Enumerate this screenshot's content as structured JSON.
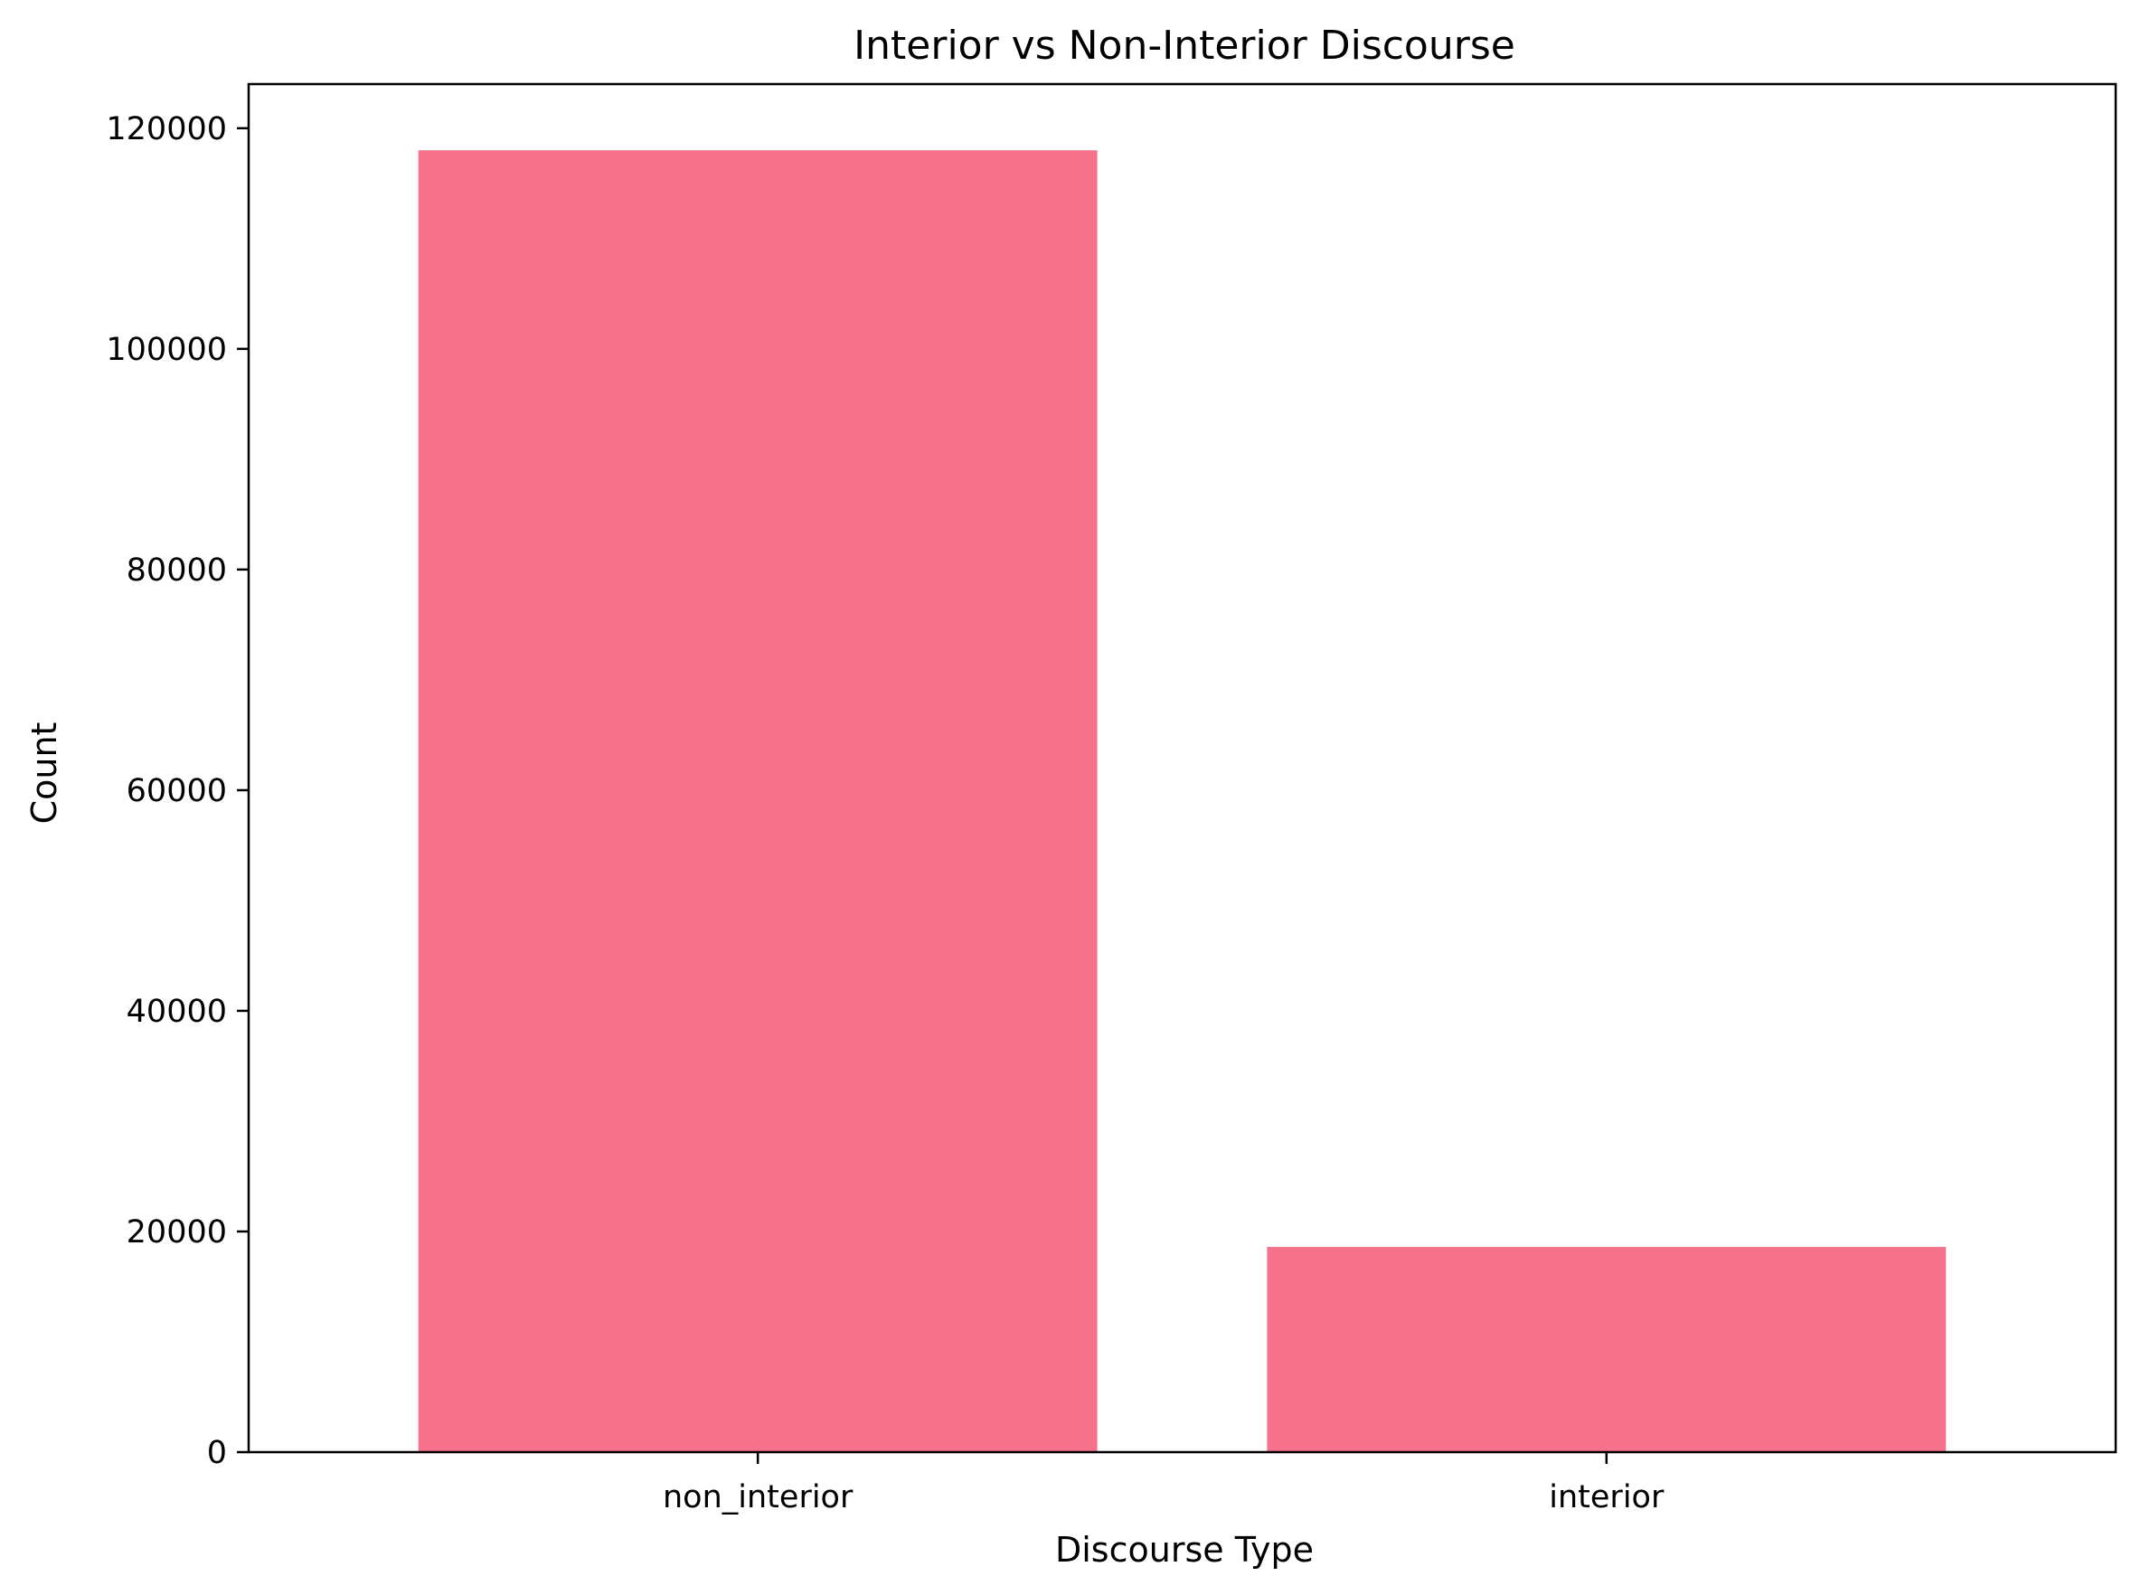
{
  "chart_data": {
    "type": "bar",
    "title": "Interior vs Non-Interior Discourse",
    "xlabel": "Discourse Type",
    "ylabel": "Count",
    "categories": [
      "non_interior",
      "interior"
    ],
    "values": [
      118000,
      18600
    ],
    "ylim": [
      0,
      124000
    ],
    "yticks": [
      0,
      20000,
      40000,
      60000,
      80000,
      100000,
      120000
    ],
    "ytick_labels": [
      "0",
      "20000",
      "40000",
      "60000",
      "80000",
      "100000",
      "120000"
    ],
    "bar_color": "#f5728a",
    "grid": false,
    "legend": "none"
  }
}
